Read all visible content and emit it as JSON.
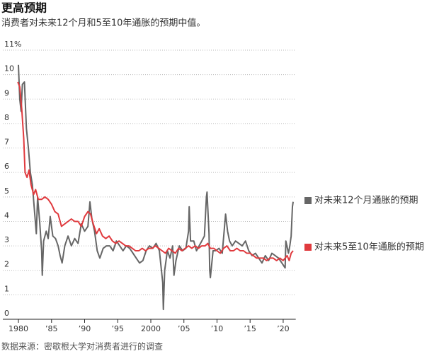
{
  "chart_data": {
    "type": "line",
    "title": "更高预期",
    "subtitle": "消费者对未来12个月和5至10年通胀的预期中值。",
    "source": "数据来源：密歇根大学对消费者进行的调查",
    "xlim": [
      1979.6,
      2021.9
    ],
    "xticks": [
      1980,
      {
        "value": 1985,
        "label": "’85"
      },
      {
        "value": 1990,
        "label": "’90"
      },
      {
        "value": 1995,
        "label": "’95"
      },
      2000,
      {
        "value": 2005,
        "label": "’05"
      },
      {
        "value": 2010,
        "label": "’10"
      },
      {
        "value": 2015,
        "label": "’15"
      },
      {
        "value": 2020,
        "label": "’20"
      }
    ],
    "ylim": [
      0,
      11
    ],
    "yticks": [
      0,
      1,
      2,
      3,
      4,
      5,
      6,
      7,
      8,
      9,
      10,
      {
        "value": 11,
        "label": "11%"
      }
    ],
    "grid": true,
    "series": [
      {
        "name": "对未来12个月通胀的预期",
        "color": "#666666",
        "x": [
          1980.0,
          1980.2,
          1980.4,
          1980.6,
          1980.9,
          1981.2,
          1981.5,
          1981.8,
          1982.1,
          1982.4,
          1982.7,
          1982.9,
          1983.2,
          1983.5,
          1983.6,
          1983.8,
          1984.2,
          1984.5,
          1984.8,
          1985.2,
          1985.6,
          1986.0,
          1986.3,
          1986.6,
          1987.0,
          1987.5,
          1988.0,
          1988.5,
          1989.0,
          1989.5,
          1990.0,
          1990.5,
          1990.8,
          1991.1,
          1991.5,
          1991.9,
          1992.3,
          1992.8,
          1993.3,
          1993.8,
          1994.3,
          1994.8,
          1995.3,
          1995.8,
          1996.3,
          1996.8,
          1997.3,
          1997.8,
          1998.3,
          1998.8,
          1999.3,
          1999.8,
          2000.3,
          2000.8,
          2001.3,
          2001.8,
          2001.9,
          2002.1,
          2002.5,
          2002.9,
          2003.3,
          2003.5,
          2003.8,
          2004.3,
          2004.8,
          2005.3,
          2005.7,
          2005.8,
          2006.0,
          2006.5,
          2006.9,
          2007.3,
          2007.7,
          2008.1,
          2008.4,
          2008.5,
          2008.8,
          2008.9,
          2009.0,
          2009.4,
          2009.8,
          2010.3,
          2010.8,
          2011.3,
          2011.6,
          2011.9,
          2012.3,
          2012.8,
          2013.3,
          2013.8,
          2014.3,
          2014.8,
          2015.3,
          2015.8,
          2016.3,
          2016.8,
          2017.3,
          2017.8,
          2018.3,
          2018.8,
          2019.3,
          2019.8,
          2020.3,
          2020.4,
          2020.8,
          2021.0,
          2021.2,
          2021.4,
          2021.5
        ],
        "values": [
          10.4,
          9.0,
          8.5,
          9.6,
          9.7,
          7.8,
          7.0,
          6.0,
          5.5,
          4.5,
          3.5,
          5.0,
          4.0,
          2.8,
          1.8,
          3.2,
          3.6,
          3.3,
          4.2,
          3.4,
          3.3,
          3.0,
          2.6,
          2.3,
          3.0,
          3.4,
          3.0,
          3.3,
          3.1,
          3.9,
          3.6,
          3.8,
          4.8,
          4.1,
          3.6,
          2.8,
          2.5,
          2.9,
          3.0,
          3.0,
          2.8,
          3.2,
          3.0,
          2.8,
          3.0,
          2.9,
          2.7,
          2.5,
          2.3,
          2.4,
          2.8,
          3.0,
          2.9,
          3.1,
          2.8,
          1.5,
          0.4,
          2.0,
          2.8,
          2.5,
          3.0,
          1.8,
          2.4,
          3.0,
          2.8,
          2.9,
          3.6,
          4.6,
          3.2,
          3.2,
          2.8,
          3.0,
          3.2,
          3.4,
          5.0,
          5.2,
          3.5,
          2.0,
          1.7,
          2.8,
          2.8,
          2.9,
          2.7,
          4.3,
          3.6,
          3.2,
          3.0,
          3.2,
          3.1,
          3.0,
          3.2,
          2.8,
          2.6,
          2.7,
          2.5,
          2.3,
          2.6,
          2.4,
          2.7,
          2.6,
          2.5,
          2.3,
          2.1,
          3.2,
          2.7,
          3.0,
          3.4,
          4.6,
          4.8
        ]
      },
      {
        "name": "对未来5至10年通胀的预期",
        "color": "#e03a3e",
        "x": [
          1979.9,
          1980.2,
          1980.5,
          1980.8,
          1981.0,
          1981.3,
          1981.6,
          1981.9,
          1982.3,
          1982.6,
          1983.0,
          1983.5,
          1984.0,
          1984.5,
          1985.0,
          1985.5,
          1986.0,
          1986.5,
          1987.0,
          1987.5,
          1988.0,
          1988.5,
          1989.0,
          1989.5,
          1990.0,
          1990.5,
          1990.9,
          1991.3,
          1991.8,
          1992.2,
          1992.7,
          1993.2,
          1993.7,
          1994.2,
          1994.7,
          1995.2,
          1995.7,
          1996.2,
          1996.7,
          1997.2,
          1997.7,
          1998.2,
          1998.7,
          1999.2,
          1999.7,
          2000.2,
          2000.7,
          2001.2,
          2001.7,
          2002.2,
          2002.7,
          2003.2,
          2003.7,
          2004.2,
          2004.7,
          2005.2,
          2005.7,
          2006.2,
          2006.7,
          2007.2,
          2007.7,
          2008.2,
          2008.6,
          2009.0,
          2009.5,
          2010.0,
          2010.5,
          2011.0,
          2011.5,
          2012.0,
          2012.5,
          2013.0,
          2013.5,
          2014.0,
          2014.5,
          2015.0,
          2015.5,
          2016.0,
          2016.5,
          2017.0,
          2017.5,
          2018.0,
          2018.5,
          2019.0,
          2019.5,
          2020.0,
          2020.3,
          2020.6,
          2020.9,
          2021.2,
          2021.5
        ],
        "values": [
          9.7,
          9.5,
          8.6,
          7.4,
          6.0,
          5.8,
          6.1,
          5.5,
          5.1,
          5.3,
          4.9,
          4.9,
          5.0,
          4.9,
          4.7,
          4.4,
          4.3,
          3.8,
          3.9,
          4.0,
          4.1,
          4.0,
          4.0,
          3.8,
          4.2,
          4.4,
          4.3,
          3.9,
          3.5,
          3.7,
          3.4,
          3.3,
          3.4,
          3.2,
          3.1,
          3.2,
          3.1,
          3.0,
          3.0,
          2.9,
          2.8,
          2.8,
          2.9,
          2.8,
          2.9,
          2.9,
          3.0,
          2.9,
          2.8,
          2.7,
          2.9,
          2.8,
          2.7,
          2.9,
          2.8,
          2.9,
          3.0,
          2.9,
          3.0,
          2.9,
          3.0,
          3.0,
          3.1,
          2.9,
          2.9,
          2.8,
          2.7,
          2.9,
          3.0,
          2.8,
          2.8,
          2.9,
          2.8,
          2.8,
          2.7,
          2.7,
          2.6,
          2.5,
          2.5,
          2.5,
          2.4,
          2.5,
          2.5,
          2.4,
          2.5,
          2.4,
          2.5,
          2.6,
          2.4,
          2.7,
          2.8
        ]
      }
    ]
  }
}
